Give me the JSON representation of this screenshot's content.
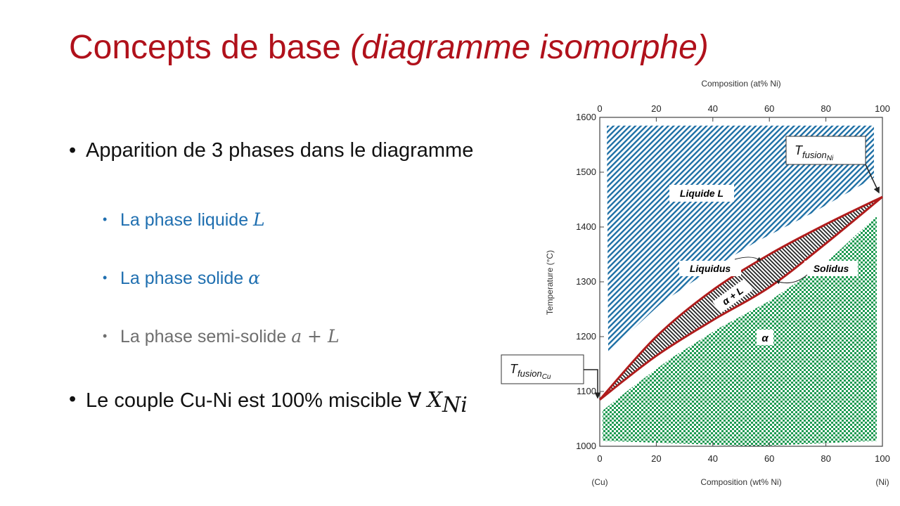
{
  "title": {
    "main": "Concepts de base ",
    "italic": "(diagramme isomorphe)"
  },
  "bullets": [
    {
      "text": "Apparition de 3 phases dans le diagramme"
    },
    {
      "text": "La phase liquide ",
      "math": "L"
    },
    {
      "text": "La phase solide ",
      "math": "α"
    },
    {
      "text": "La phase semi-solide ",
      "math": "a + L"
    },
    {
      "text": "Le couple Cu-Ni est 100% miscible ∀ ",
      "math": "X",
      "sub": "Ni"
    }
  ],
  "bullet_symbol": "•",
  "diagram": {
    "top_axis_label": "Composition (at% Ni)",
    "bottom_axis_label": "Composition (wt% Ni)",
    "y_axis_label": "Temperature (°C)",
    "x_ticks": [
      "0",
      "20",
      "40",
      "60",
      "80",
      "100"
    ],
    "y_ticks": [
      "1000",
      "1100",
      "1200",
      "1300",
      "1400",
      "1500",
      "1600"
    ],
    "left_end": "(Cu)",
    "right_end": "(Ni)",
    "labels": {
      "liquid": "Liquide L",
      "liquidus": "Liquidus",
      "solidus": "Solidus",
      "two_phase": "α + L",
      "alpha": "α"
    },
    "t_ni": {
      "base": "T",
      "sub": "fusion",
      "subsub": "Ni"
    },
    "t_cu": {
      "base": "T",
      "sub": "fusion",
      "subsub": "Cu"
    },
    "liquidus_points": [
      [
        0,
        1085
      ],
      [
        20,
        1200
      ],
      [
        40,
        1285
      ],
      [
        60,
        1350
      ],
      [
        80,
        1405
      ],
      [
        100,
        1455
      ]
    ],
    "solidus_points": [
      [
        0,
        1085
      ],
      [
        20,
        1165
      ],
      [
        40,
        1230
      ],
      [
        60,
        1290
      ],
      [
        80,
        1370
      ],
      [
        100,
        1455
      ]
    ],
    "colors": {
      "line": "#b01c1c",
      "liquid_hatch": "#1d6fa5",
      "alpha_checker": "#1e9a52",
      "frame": "#444444"
    }
  }
}
